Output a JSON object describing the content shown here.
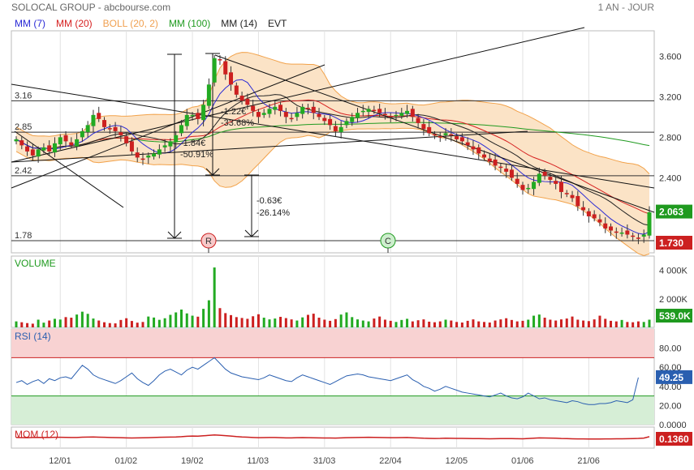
{
  "header": {
    "title": "SOLOCAL GROUP - abcbourse.com",
    "period": "1 AN - JOUR"
  },
  "legend": [
    {
      "label": "MM (7)",
      "color": "#2a2ad6"
    },
    {
      "label": "MM (20)",
      "color": "#d62020"
    },
    {
      "label": "BOLL (20, 2)",
      "color": "#f0a050"
    },
    {
      "label": "MM (100)",
      "color": "#1f9a1f"
    },
    {
      "label": "MM (14)",
      "color": "#222222"
    },
    {
      "label": "EVT",
      "color": "#222222"
    }
  ],
  "colors": {
    "up": "#22aa22",
    "down": "#cc2020",
    "boll_fill": "#fbe3c6",
    "boll_line": "#f2a24a",
    "rsi_over": "#f8d2d2",
    "rsi_under": "#d6eed6",
    "rsi_line": "#2a5fb0",
    "mom_line": "#cc2020"
  },
  "chart_data": [
    {
      "type": "candlestick",
      "panel": "price",
      "x_labels": [
        "12/01",
        "01/02",
        "19/02",
        "11/03",
        "31/03",
        "22/04",
        "12/05",
        "01/06",
        "21/06"
      ],
      "y_ticks": [
        "3.600",
        "3.200",
        "2.800",
        "2.400"
      ],
      "ylim": [
        1.66,
        3.85
      ],
      "close": [
        2.78,
        2.72,
        2.66,
        2.62,
        2.68,
        2.7,
        2.66,
        2.74,
        2.8,
        2.76,
        2.72,
        2.78,
        2.86,
        2.92,
        3.02,
        2.98,
        2.9,
        2.88,
        2.86,
        2.82,
        2.74,
        2.66,
        2.6,
        2.58,
        2.62,
        2.64,
        2.68,
        2.72,
        2.76,
        2.82,
        2.92,
        3.02,
        3.02,
        2.98,
        3.12,
        3.32,
        3.58,
        3.56,
        3.42,
        3.32,
        3.22,
        3.16,
        3.12,
        3.06,
        3.0,
        3.04,
        3.08,
        3.1,
        3.06,
        3.0,
        2.98,
        3.04,
        3.1,
        3.08,
        3.04,
        3.0,
        2.96,
        2.92,
        2.86,
        2.9,
        2.96,
        3.0,
        3.04,
        3.06,
        3.08,
        3.06,
        3.04,
        3.02,
        3.0,
        3.02,
        3.04,
        3.06,
        3.0,
        2.94,
        2.88,
        2.84,
        2.82,
        2.8,
        2.84,
        2.82,
        2.78,
        2.76,
        2.72,
        2.68,
        2.64,
        2.6,
        2.56,
        2.52,
        2.5,
        2.46,
        2.4,
        2.34,
        2.28,
        2.3,
        2.36,
        2.44,
        2.42,
        2.38,
        2.34,
        2.26,
        2.24,
        2.2,
        2.12,
        2.08,
        2.02,
        2.0,
        1.96,
        1.9,
        1.88,
        1.86,
        1.86,
        1.84,
        1.82,
        1.8,
        1.84,
        2.06
      ],
      "lines": [
        {
          "label": "3.16",
          "value": 3.16
        },
        {
          "label": "2.85",
          "value": 2.85
        },
        {
          "label": "2.42",
          "value": 2.42
        },
        {
          "label": "1.78",
          "value": 1.78
        }
      ],
      "last_close": "2.063",
      "last_close_color": "#1f9a1f",
      "low_mark": "1.730",
      "low_mark_color": "#cc2020",
      "annotations": [
        "-1.22€",
        "-33.68%",
        "-1.84€",
        "-50.91%",
        "-0.63€",
        "-26.14%"
      ],
      "event_labels": [
        "R",
        "C"
      ]
    },
    {
      "type": "bar",
      "panel": "volume",
      "title": "VOLUME",
      "y_ticks": [
        "4 000K",
        "2 000K"
      ],
      "last_value": "539.0K",
      "ylim": [
        0,
        5000
      ],
      "values": [
        420,
        360,
        300,
        260,
        540,
        330,
        480,
        600,
        550,
        720,
        680,
        900,
        1100,
        950,
        620,
        480,
        360,
        300,
        280,
        520,
        640,
        450,
        330,
        380,
        760,
        690,
        530,
        640,
        880,
        1050,
        1250,
        980,
        820,
        750,
        1300,
        1900,
        4200,
        1350,
        1000,
        860,
        720,
        660,
        600,
        780,
        920,
        680,
        560,
        620,
        740,
        650,
        560,
        480,
        700,
        880,
        960,
        680,
        540,
        460,
        580,
        900,
        1050,
        720,
        560,
        480,
        420,
        620,
        760,
        540,
        460,
        380,
        520,
        600,
        420,
        500,
        560,
        400,
        360,
        420,
        540,
        480,
        380,
        340,
        460,
        560,
        420,
        380,
        340,
        480,
        560,
        640,
        520,
        420,
        460,
        540,
        820,
        900,
        680,
        540,
        480,
        560,
        620,
        760,
        540,
        480,
        440,
        560,
        820,
        600,
        460,
        420,
        520,
        380,
        360,
        420,
        380,
        539
      ]
    },
    {
      "type": "line",
      "panel": "rsi",
      "title": "RSI (14)",
      "y_ticks": [
        "80.00",
        "60.00",
        "40.00",
        "20.00",
        "0.0000"
      ],
      "ylim": [
        0,
        100
      ],
      "last_value": "49.25",
      "values": [
        44,
        46,
        42,
        45,
        47,
        43,
        48,
        46,
        49,
        50,
        48,
        55,
        62,
        58,
        52,
        49,
        47,
        45,
        43,
        46,
        50,
        54,
        48,
        44,
        41,
        46,
        52,
        56,
        58,
        55,
        52,
        57,
        60,
        58,
        62,
        66,
        70,
        64,
        58,
        54,
        52,
        50,
        49,
        48,
        47,
        49,
        52,
        50,
        48,
        46,
        45,
        49,
        52,
        50,
        48,
        46,
        44,
        42,
        45,
        48,
        51,
        52,
        53,
        52,
        50,
        49,
        48,
        47,
        46,
        48,
        50,
        52,
        47,
        44,
        40,
        38,
        35,
        37,
        40,
        38,
        36,
        34,
        33,
        32,
        31,
        30,
        29,
        31,
        33,
        30,
        28,
        27,
        29,
        33,
        30,
        27,
        28,
        26,
        25,
        24,
        23,
        25,
        24,
        22,
        21,
        21,
        22,
        22,
        23,
        25,
        24,
        23,
        26,
        49.25
      ]
    },
    {
      "type": "line",
      "panel": "momentum",
      "title": "MOM (12)",
      "last_value": "0.1360",
      "values": [
        0.02,
        0.0,
        -0.01,
        0.01,
        0.03,
        0.02,
        0.01,
        0.04,
        0.05,
        0.03,
        0.01,
        0.02,
        0.06,
        0.08,
        0.1,
        0.07,
        0.04,
        0.02,
        0.0,
        -0.02,
        -0.04,
        -0.06,
        -0.05,
        -0.03,
        -0.01,
        0.02,
        0.04,
        0.06,
        0.08,
        0.1,
        0.14,
        0.2,
        0.24,
        0.22,
        0.28,
        0.34,
        0.4,
        0.36,
        0.3,
        0.24,
        0.16,
        0.1,
        0.06,
        0.02,
        -0.02,
        0.0,
        0.02,
        0.01,
        -0.02,
        -0.04,
        -0.05,
        -0.02,
        0.0,
        -0.01,
        -0.03,
        -0.05,
        -0.06,
        -0.07,
        -0.08,
        -0.05,
        -0.02,
        0.0,
        0.02,
        0.03,
        0.04,
        0.03,
        0.02,
        0.0,
        -0.02,
        -0.01,
        0.0,
        0.01,
        -0.03,
        -0.06,
        -0.1,
        -0.12,
        -0.14,
        -0.13,
        -0.1,
        -0.11,
        -0.12,
        -0.13,
        -0.14,
        -0.15,
        -0.16,
        -0.17,
        -0.18,
        -0.17,
        -0.16,
        -0.15,
        -0.16,
        -0.17,
        -0.18,
        -0.14,
        -0.1,
        -0.05,
        -0.06,
        -0.08,
        -0.1,
        -0.14,
        -0.16,
        -0.18,
        -0.2,
        -0.21,
        -0.22,
        -0.22,
        -0.22,
        -0.21,
        -0.2,
        -0.19,
        -0.18,
        -0.17,
        -0.15,
        -0.13,
        -0.08,
        0.136
      ]
    }
  ]
}
